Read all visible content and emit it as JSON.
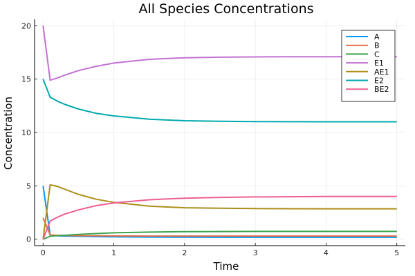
{
  "chart_data": {
    "type": "line",
    "title": "All Species Concentrations",
    "xlabel": "Time",
    "ylabel": "Concentration",
    "xlim": [
      -0.12,
      5.12
    ],
    "ylim": [
      -0.6,
      20.6
    ],
    "xticks": [
      0,
      1,
      2,
      3,
      4,
      5
    ],
    "yticks": [
      0,
      5,
      10,
      15,
      20
    ],
    "grid": true,
    "legend_position": "top-right",
    "x": [
      0,
      0.1,
      0.2,
      0.3,
      0.5,
      0.75,
      1,
      1.5,
      2,
      2.5,
      3,
      3.5,
      4,
      4.5,
      5
    ],
    "series": [
      {
        "name": "A",
        "color": "#009AFA",
        "values": [
          5,
          0.4,
          0.32,
          0.3,
          0.27,
          0.24,
          0.22,
          0.2,
          0.19,
          0.18,
          0.18,
          0.18,
          0.18,
          0.18,
          0.18
        ]
      },
      {
        "name": "B",
        "color": "#E36F47",
        "values": [
          2,
          0.4,
          0.37,
          0.35,
          0.33,
          0.32,
          0.31,
          0.3,
          0.3,
          0.3,
          0.3,
          0.3,
          0.3,
          0.3,
          0.3
        ]
      },
      {
        "name": "C",
        "color": "#3EA44E",
        "values": [
          0,
          0.28,
          0.33,
          0.37,
          0.45,
          0.53,
          0.6,
          0.67,
          0.71,
          0.72,
          0.73,
          0.73,
          0.73,
          0.73,
          0.73
        ]
      },
      {
        "name": "E1",
        "color": "#C271D2",
        "values": [
          20,
          14.9,
          15.1,
          15.35,
          15.8,
          16.2,
          16.5,
          16.85,
          17.0,
          17.05,
          17.08,
          17.1,
          17.1,
          17.1,
          17.1
        ]
      },
      {
        "name": "AE1",
        "color": "#AC8D18",
        "values": [
          0,
          5.1,
          4.95,
          4.7,
          4.2,
          3.75,
          3.45,
          3.1,
          2.95,
          2.9,
          2.87,
          2.86,
          2.85,
          2.85,
          2.85
        ]
      },
      {
        "name": "E2",
        "color": "#00A9AD",
        "values": [
          15,
          13.3,
          12.95,
          12.65,
          12.2,
          11.8,
          11.55,
          11.25,
          11.1,
          11.05,
          11.02,
          11.01,
          11.0,
          11.0,
          11.0
        ]
      },
      {
        "name": "BE2",
        "color": "#ED5D92",
        "values": [
          0,
          1.7,
          2.05,
          2.35,
          2.75,
          3.15,
          3.4,
          3.7,
          3.85,
          3.92,
          3.96,
          3.98,
          4.0,
          4.0,
          4.0
        ]
      }
    ]
  }
}
